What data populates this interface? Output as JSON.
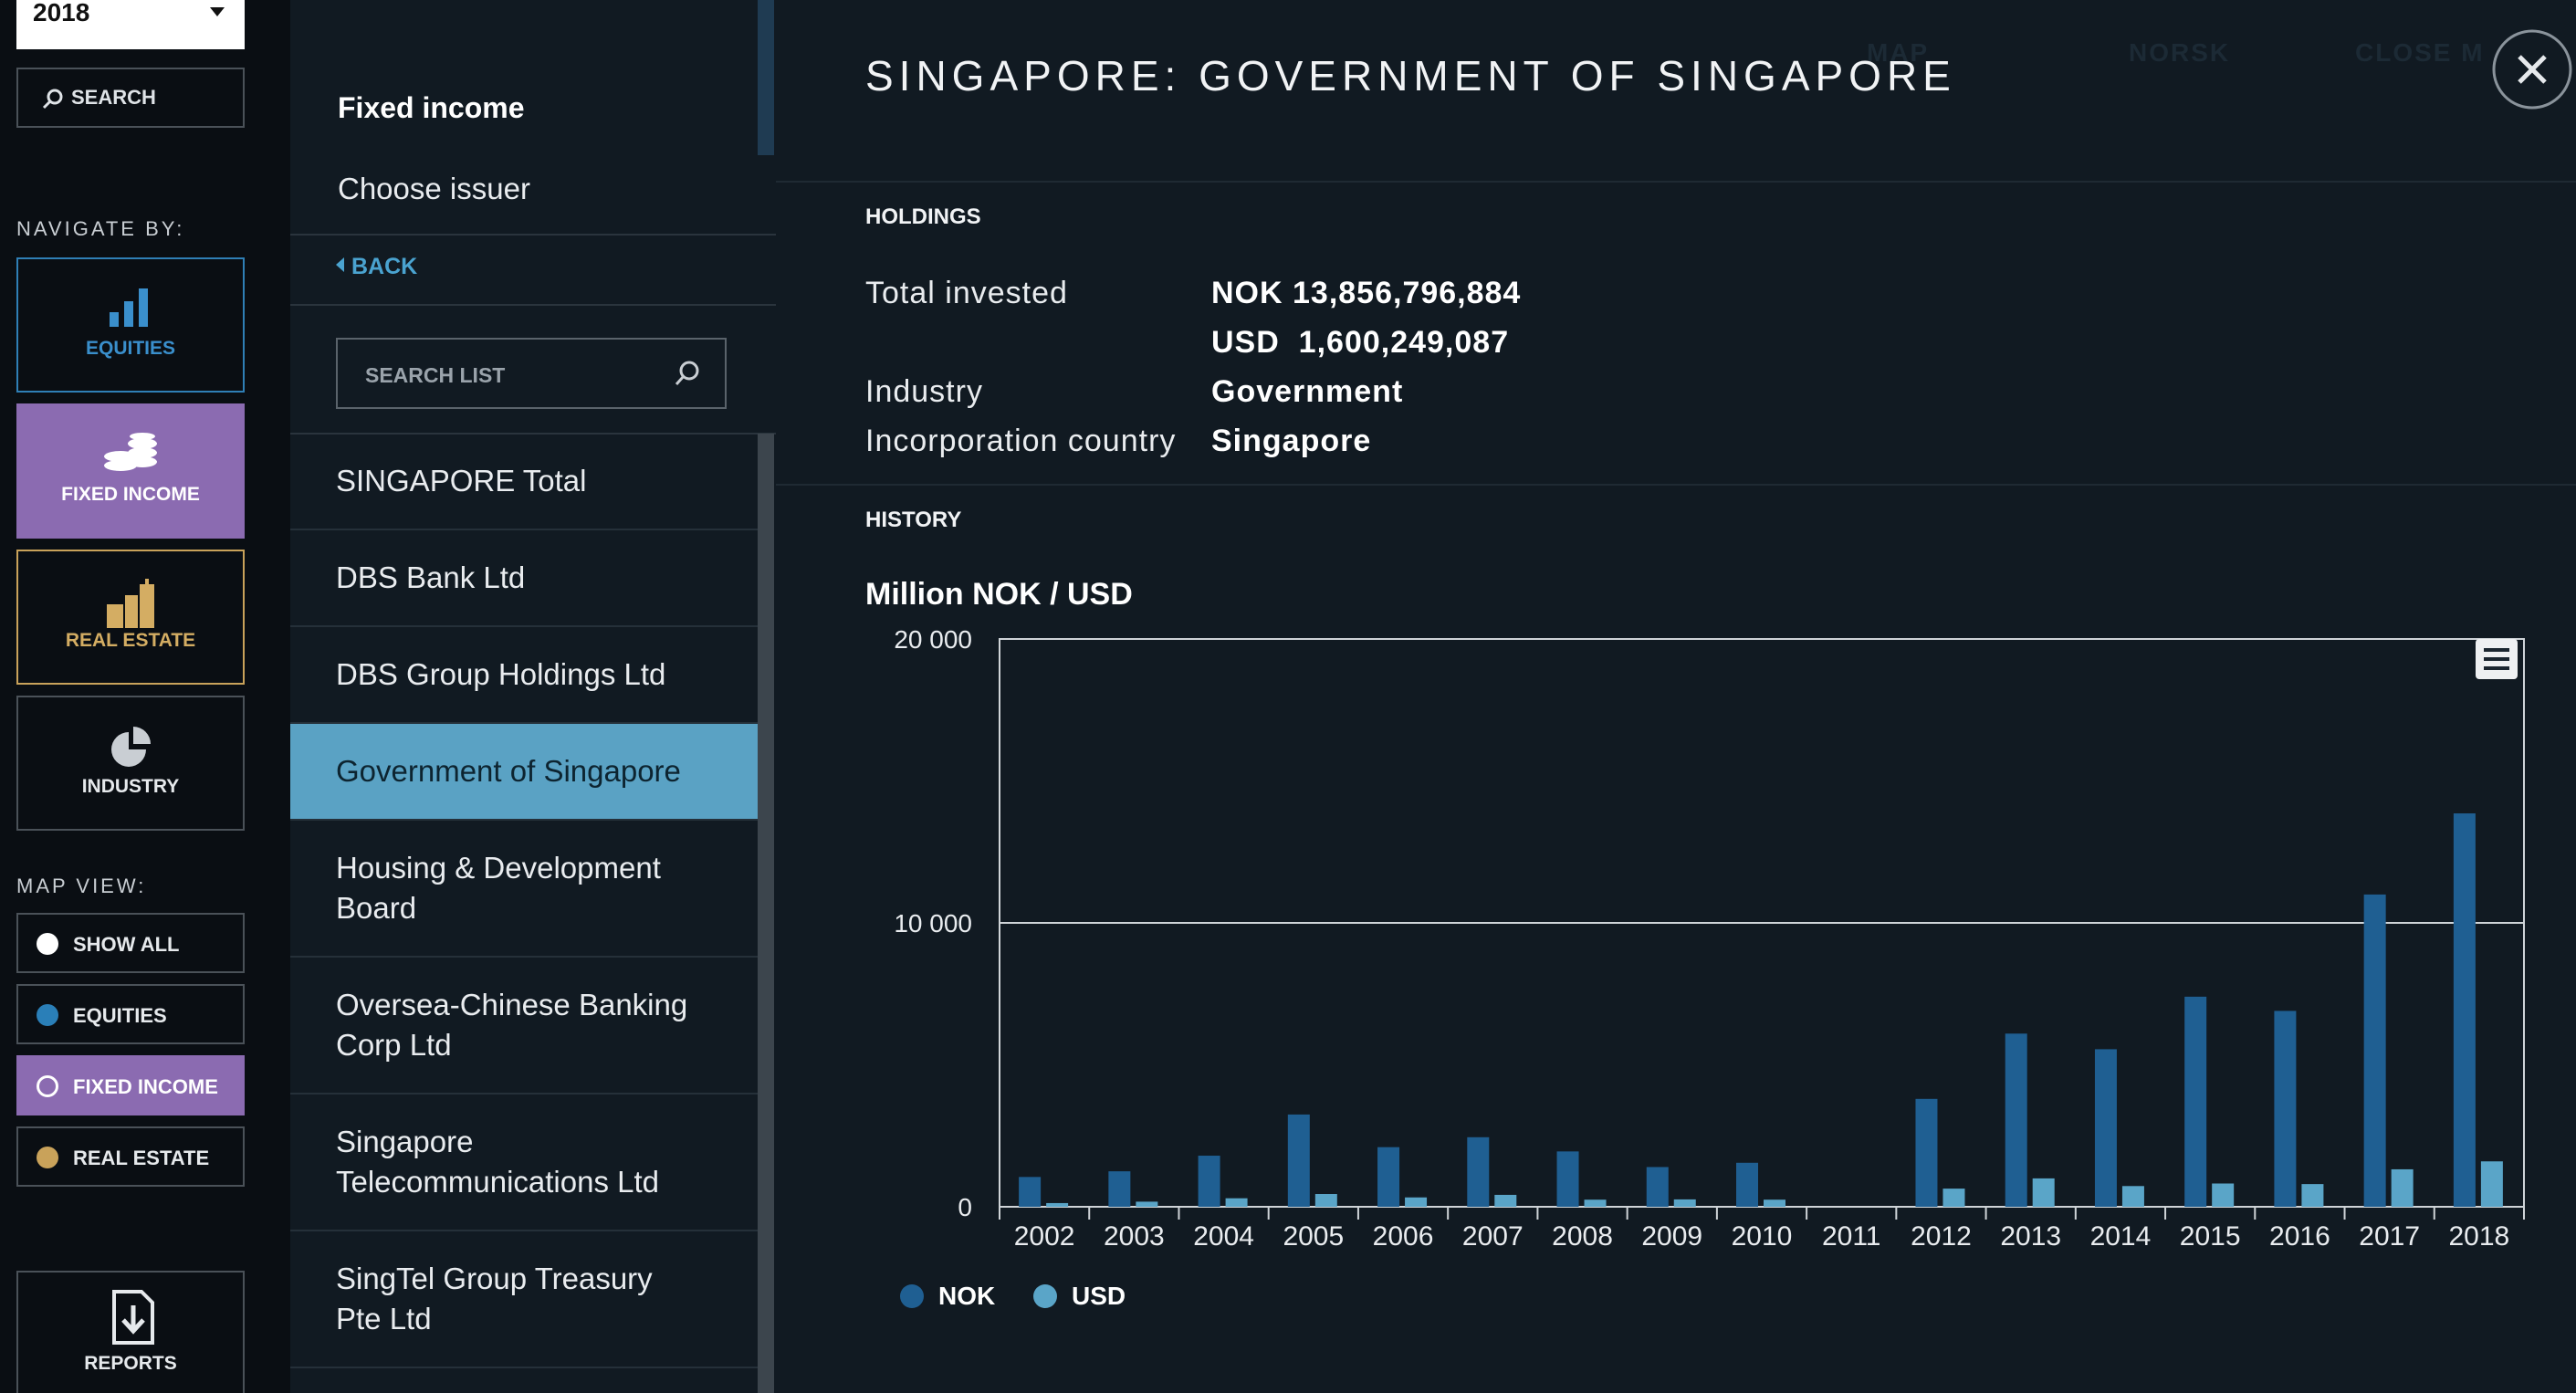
{
  "nav": {
    "year": "2018",
    "search_label": "SEARCH",
    "navigate_by_label": "NAVIGATE BY:",
    "equities_label": "EQUITIES",
    "fixed_income_label": "FIXED INCOME",
    "real_estate_label": "REAL ESTATE",
    "industry_label": "INDUSTRY",
    "map_view_label": "MAP VIEW:",
    "map_options": [
      "SHOW ALL",
      "EQUITIES",
      "FIXED INCOME",
      "REAL ESTATE"
    ],
    "reports_label": "REPORTS"
  },
  "list_panel": {
    "title": "Fixed income",
    "subtitle": "Choose issuer",
    "back_label": "BACK",
    "search_placeholder": "SEARCH LIST",
    "issuers": [
      "SINGAPORE Total",
      "DBS Bank Ltd",
      "DBS Group Holdings Ltd",
      "Government of Singapore",
      "Housing & Development Board",
      "Oversea-Chinese Banking Corp Ltd",
      "Singapore Telecommunications Ltd",
      "SingTel Group Treasury Pte Ltd"
    ],
    "selected_index": 3
  },
  "background_map_text": {
    "map_link": "MAP",
    "norsk": "NORSK",
    "close_map": "CLOSE M"
  },
  "detail": {
    "title": "SINGAPORE: GOVERNMENT OF SINGAPORE",
    "holdings_label": "HOLDINGS",
    "total_invested_label": "Total invested",
    "total_nok": "NOK 13,856,796,884",
    "total_usd": "USD  1,600,249,087",
    "industry_label": "Industry",
    "industry_value": "Government",
    "country_label": "Incorporation country",
    "country_value": "Singapore",
    "history_label": "HISTORY"
  },
  "chart_data": {
    "type": "bar",
    "title": "Million NOK / USD",
    "categories": [
      "2002",
      "2003",
      "2004",
      "2005",
      "2006",
      "2007",
      "2008",
      "2009",
      "2010",
      "2011",
      "2012",
      "2013",
      "2014",
      "2015",
      "2016",
      "2017",
      "2018"
    ],
    "series": [
      {
        "name": "NOK",
        "values": [
          1050,
          1250,
          1800,
          3250,
          2100,
          2450,
          1950,
          1400,
          1550,
          0,
          3800,
          6100,
          5550,
          7400,
          6900,
          11000,
          13857
        ]
      },
      {
        "name": "USD",
        "values": [
          130,
          180,
          300,
          450,
          330,
          420,
          250,
          260,
          250,
          0,
          640,
          1000,
          730,
          820,
          800,
          1320,
          1600
        ]
      }
    ],
    "y_ticks": [
      "0",
      "10 000",
      "20 000"
    ],
    "ylim": [
      0,
      20000
    ],
    "grid": true,
    "legend_position": "bottom-left",
    "colors": {
      "NOK": "#1f5f92",
      "USD": "#5aa5c8"
    }
  }
}
